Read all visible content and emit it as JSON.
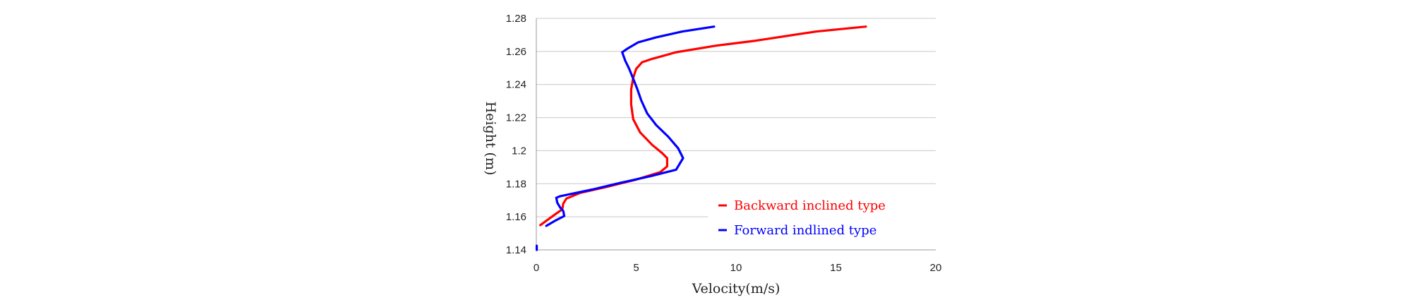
{
  "chart_data": {
    "type": "line",
    "xlabel": "Velocity(m/s)",
    "ylabel": "Height (m)",
    "xlim": [
      0,
      20
    ],
    "ylim": [
      1.14,
      1.28
    ],
    "x_ticks": [
      "0",
      "5",
      "10",
      "15",
      "20"
    ],
    "y_ticks": [
      "1.14",
      "1.16",
      "1.18",
      "1.2",
      "1.22",
      "1.24",
      "1.26",
      "1.28"
    ],
    "grid": "horizontal",
    "legend_position": "bottom-right",
    "series": [
      {
        "name": "Backward inclined type",
        "color": "#ff0000",
        "points": [
          [
            16.5,
            1.275
          ],
          [
            14.0,
            1.272
          ],
          [
            11.0,
            1.2665
          ],
          [
            9.0,
            1.2635
          ],
          [
            7.0,
            1.2595
          ],
          [
            5.8,
            1.2555
          ],
          [
            5.3,
            1.2535
          ],
          [
            5.0,
            1.2495
          ],
          [
            4.85,
            1.244
          ],
          [
            4.75,
            1.237
          ],
          [
            4.75,
            1.228
          ],
          [
            4.85,
            1.219
          ],
          [
            5.2,
            1.211
          ],
          [
            5.8,
            1.2035
          ],
          [
            6.3,
            1.1985
          ],
          [
            6.55,
            1.1955
          ],
          [
            6.55,
            1.1905
          ],
          [
            6.2,
            1.187
          ],
          [
            5.0,
            1.1825
          ],
          [
            3.5,
            1.178
          ],
          [
            2.2,
            1.1745
          ],
          [
            1.5,
            1.171
          ],
          [
            1.35,
            1.168
          ],
          [
            1.3,
            1.1645
          ],
          [
            1.0,
            1.162
          ],
          [
            0.6,
            1.1585
          ],
          [
            0.2,
            1.155
          ]
        ]
      },
      {
        "name": "Forward indlined type",
        "color": "#0000ff",
        "points": [
          [
            8.9,
            1.275
          ],
          [
            7.3,
            1.272
          ],
          [
            6.0,
            1.2685
          ],
          [
            5.1,
            1.2655
          ],
          [
            4.6,
            1.262
          ],
          [
            4.3,
            1.2595
          ],
          [
            4.45,
            1.2545
          ],
          [
            4.65,
            1.2495
          ],
          [
            4.85,
            1.2435
          ],
          [
            5.05,
            1.2375
          ],
          [
            5.25,
            1.2305
          ],
          [
            5.55,
            1.2225
          ],
          [
            6.0,
            1.2155
          ],
          [
            6.6,
            1.2085
          ],
          [
            7.1,
            1.2015
          ],
          [
            7.35,
            1.1955
          ],
          [
            7.0,
            1.1885
          ],
          [
            5.7,
            1.1845
          ],
          [
            4.2,
            1.1805
          ],
          [
            2.8,
            1.1765
          ],
          [
            1.2,
            1.1725
          ],
          [
            1.0,
            1.1715
          ],
          [
            1.05,
            1.1685
          ],
          [
            1.2,
            1.1655
          ],
          [
            1.35,
            1.1635
          ],
          [
            1.4,
            1.1605
          ],
          [
            1.0,
            1.158
          ],
          [
            0.5,
            1.1545
          ]
        ]
      },
      {
        "name": "",
        "color": "#0000ff",
        "points": [
          [
            0.02,
            1.1425
          ],
          [
            0.02,
            1.14
          ]
        ]
      }
    ]
  }
}
